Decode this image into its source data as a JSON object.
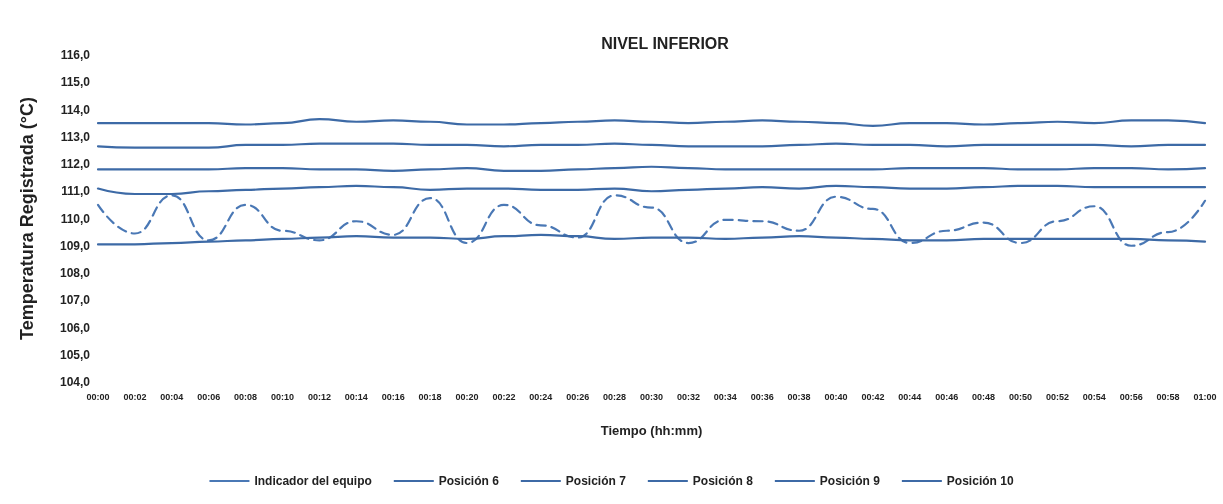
{
  "chart_data": {
    "type": "line",
    "title": "NIVEL INFERIOR",
    "xlabel": "Tiempo (hh:mm)",
    "ylabel": "Temperatura Registrada (°C)",
    "categories": [
      "00:00",
      "00:02",
      "00:04",
      "00:06",
      "00:08",
      "00:10",
      "00:12",
      "00:14",
      "00:16",
      "00:18",
      "00:20",
      "00:22",
      "00:24",
      "00:26",
      "00:28",
      "00:30",
      "00:32",
      "00:34",
      "00:36",
      "00:38",
      "00:40",
      "00:42",
      "00:44",
      "00:46",
      "00:48",
      "00:50",
      "00:52",
      "00:54",
      "00:56",
      "00:58",
      "01:00"
    ],
    "series": [
      {
        "name": "Indicador del equipo",
        "color": "#4a78b5",
        "line_style": "dashed",
        "values": [
          110.5,
          109.45,
          110.85,
          109.2,
          110.5,
          109.55,
          109.2,
          109.9,
          109.4,
          110.75,
          109.1,
          110.5,
          109.75,
          109.3,
          110.85,
          110.4,
          109.1,
          109.95,
          109.9,
          109.55,
          110.8,
          110.35,
          109.1,
          109.55,
          109.85,
          109.1,
          109.9,
          110.45,
          109.0,
          109.5,
          110.65
        ]
      },
      {
        "name": "Posición 6",
        "color": "#3d6aa6",
        "line_style": "solid",
        "values": [
          109.05,
          109.05,
          109.1,
          109.15,
          109.2,
          109.25,
          109.3,
          109.35,
          109.3,
          109.3,
          109.25,
          109.35,
          109.4,
          109.35,
          109.25,
          109.3,
          109.3,
          109.25,
          109.3,
          109.35,
          109.3,
          109.25,
          109.2,
          109.2,
          109.25,
          109.25,
          109.25,
          109.25,
          109.25,
          109.2,
          109.15
        ]
      },
      {
        "name": "Posición 7",
        "color": "#3d6aa6",
        "line_style": "solid",
        "values": [
          111.1,
          110.9,
          110.9,
          111.0,
          111.05,
          111.1,
          111.15,
          111.2,
          111.15,
          111.05,
          111.1,
          111.1,
          111.05,
          111.05,
          111.1,
          111.0,
          111.05,
          111.1,
          111.15,
          111.1,
          111.2,
          111.15,
          111.1,
          111.1,
          111.15,
          111.2,
          111.2,
          111.15,
          111.15,
          111.15,
          111.15
        ]
      },
      {
        "name": "Posición 8",
        "color": "#3d6aa6",
        "line_style": "solid",
        "values": [
          111.8,
          111.8,
          111.8,
          111.8,
          111.85,
          111.85,
          111.8,
          111.8,
          111.75,
          111.8,
          111.85,
          111.75,
          111.75,
          111.8,
          111.85,
          111.9,
          111.85,
          111.8,
          111.8,
          111.8,
          111.8,
          111.8,
          111.85,
          111.85,
          111.85,
          111.8,
          111.8,
          111.85,
          111.85,
          111.8,
          111.85
        ]
      },
      {
        "name": "Posición 9",
        "color": "#3d6aa6",
        "line_style": "solid",
        "values": [
          112.65,
          112.6,
          112.6,
          112.6,
          112.7,
          112.7,
          112.75,
          112.75,
          112.75,
          112.7,
          112.7,
          112.65,
          112.7,
          112.7,
          112.75,
          112.7,
          112.65,
          112.65,
          112.65,
          112.7,
          112.75,
          112.7,
          112.7,
          112.65,
          112.7,
          112.7,
          112.7,
          112.7,
          112.65,
          112.7,
          112.7
        ]
      },
      {
        "name": "Posición 10",
        "color": "#3d6aa6",
        "line_style": "solid",
        "values": [
          113.5,
          113.5,
          113.5,
          113.5,
          113.45,
          113.5,
          113.65,
          113.55,
          113.6,
          113.55,
          113.45,
          113.45,
          113.5,
          113.55,
          113.6,
          113.55,
          113.5,
          113.55,
          113.6,
          113.55,
          113.5,
          113.4,
          113.5,
          113.5,
          113.45,
          113.5,
          113.55,
          113.5,
          113.6,
          113.6,
          113.5
        ]
      }
    ],
    "ylim": [
      104,
      116
    ],
    "yticks": [
      {
        "value": 104,
        "label": "104,0"
      },
      {
        "value": 105,
        "label": "105,0"
      },
      {
        "value": 106,
        "label": "106,0"
      },
      {
        "value": 107,
        "label": "107,0"
      },
      {
        "value": 108,
        "label": "108,0"
      },
      {
        "value": 109,
        "label": "109,0"
      },
      {
        "value": 110,
        "label": "110,0"
      },
      {
        "value": 111,
        "label": "111,0"
      },
      {
        "value": 112,
        "label": "112,0"
      },
      {
        "value": 113,
        "label": "113,0"
      },
      {
        "value": 114,
        "label": "114,0"
      },
      {
        "value": 115,
        "label": "115,0"
      },
      {
        "value": 116,
        "label": "116,0"
      }
    ],
    "grid": false,
    "legend": "bottom",
    "marker": "none"
  }
}
